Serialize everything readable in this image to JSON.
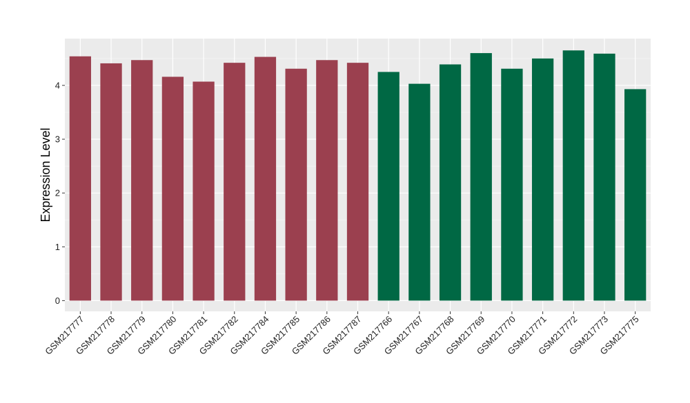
{
  "chart_data": {
    "type": "bar",
    "ylabel": "Expression Level",
    "xlabel": "",
    "ylim": [
      -0.2,
      4.87
    ],
    "yticks": [
      0,
      1,
      2,
      3,
      4
    ],
    "grid": true,
    "background": "#ebebeb",
    "group_colors": [
      "#9b404f",
      "#006844"
    ],
    "categories": [
      "GSM217777",
      "GSM217778",
      "GSM217779",
      "GSM217780",
      "GSM217781",
      "GSM217782",
      "GSM217784",
      "GSM217785",
      "GSM217786",
      "GSM217787",
      "GSM217766",
      "GSM217767",
      "GSM217768",
      "GSM217769",
      "GSM217770",
      "GSM217771",
      "GSM217772",
      "GSM217773",
      "GSM217775"
    ],
    "values": [
      4.54,
      4.41,
      4.47,
      4.16,
      4.07,
      4.42,
      4.53,
      4.31,
      4.47,
      4.42,
      4.25,
      4.03,
      4.39,
      4.6,
      4.31,
      4.5,
      4.65,
      4.59,
      3.93
    ],
    "groups": [
      0,
      0,
      0,
      0,
      0,
      0,
      0,
      0,
      0,
      0,
      1,
      1,
      1,
      1,
      1,
      1,
      1,
      1,
      1
    ]
  }
}
